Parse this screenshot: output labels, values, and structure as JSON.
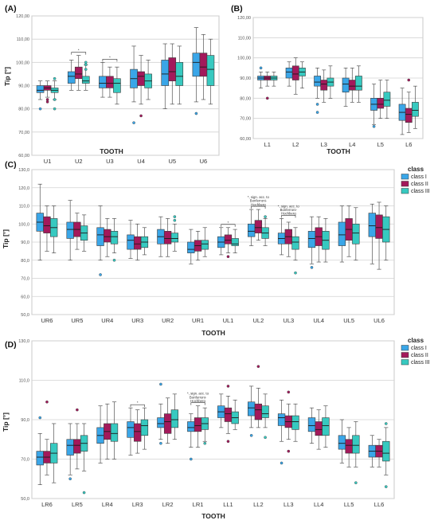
{
  "colors": {
    "class I": "#3aa6e8",
    "class II": "#a3195b",
    "class III": "#37c9c0"
  },
  "chart_data": [
    {
      "type": "box",
      "panel": "(A)",
      "title": "",
      "xlabel": "TOOTH",
      "ylabel": "Tip [°]",
      "ylim": [
        60,
        120
      ],
      "yticks": [
        60,
        70,
        80,
        90,
        100,
        110,
        120
      ],
      "ytick_labels": [
        "60,00",
        "70,00",
        "80,00",
        "90,00",
        "100,00",
        "110,00",
        "120,00"
      ],
      "grid": true,
      "categories": [
        "U1",
        "U2",
        "U3",
        "U4",
        "U5",
        "U6"
      ],
      "series_names": [
        "class I",
        "class II",
        "class III"
      ],
      "stats": [
        [
          [
            84,
            87,
            88,
            90,
            92,
            [
              80
            ]
          ],
          [
            85,
            88,
            89,
            90,
            92,
            [
              83,
              84
            ]
          ],
          [
            84,
            87,
            88,
            89,
            92,
            [
              80,
              84,
              93
            ]
          ]
        ],
        [
          [
            88,
            91,
            94,
            96,
            101,
            []
          ],
          [
            88,
            93,
            95,
            98,
            103,
            []
          ],
          [
            88,
            91,
            92,
            94,
            99,
            [
              97,
              99,
              100
            ]
          ]
        ],
        [
          [
            85,
            89,
            91,
            94,
            100,
            []
          ],
          [
            85,
            89,
            91,
            94,
            98,
            []
          ],
          [
            82,
            87,
            91,
            93,
            98,
            []
          ]
        ],
        [
          [
            83,
            89,
            93,
            97,
            107,
            [
              74
            ]
          ],
          [
            82,
            90,
            94,
            96,
            103,
            [
              77
            ]
          ],
          [
            84,
            89,
            92,
            95,
            101,
            []
          ]
        ],
        [
          [
            80,
            90,
            95,
            101,
            108,
            []
          ],
          [
            82,
            92,
            96,
            102,
            108,
            []
          ],
          [
            82,
            90,
            94,
            100,
            107,
            []
          ]
        ],
        [
          [
            83,
            94,
            100,
            104,
            115,
            [
              78
            ]
          ],
          [
            84,
            94,
            98,
            104,
            112,
            []
          ],
          [
            82,
            90,
            97,
            103,
            110,
            []
          ]
        ]
      ],
      "significance": [
        {
          "category": "U2",
          "label": "*"
        },
        {
          "category": "U3",
          "label": "*"
        }
      ]
    },
    {
      "type": "box",
      "panel": "(B)",
      "title": "",
      "xlabel": "TOOTH",
      "ylabel": "",
      "ylim": [
        60,
        120
      ],
      "yticks": [
        60,
        70,
        80,
        90,
        100,
        110,
        120
      ],
      "ytick_labels": [
        "60,00",
        "70,00",
        "80,00",
        "90,00",
        "100,00",
        "110,00",
        "120,00"
      ],
      "grid": true,
      "categories": [
        "L1",
        "L2",
        "L3",
        "L4",
        "L5",
        "L6"
      ],
      "series_names": [
        "class I",
        "class II",
        "class III"
      ],
      "stats": [
        [
          [
            85,
            89,
            90,
            91,
            93,
            [
              95
            ]
          ],
          [
            86,
            89,
            90,
            91,
            93,
            [
              80
            ]
          ],
          [
            86,
            89,
            90,
            91,
            93,
            []
          ]
        ],
        [
          [
            86,
            90,
            93,
            95,
            98,
            []
          ],
          [
            82,
            89,
            92,
            96,
            100,
            []
          ],
          [
            85,
            91,
            93,
            95,
            98,
            []
          ]
        ],
        [
          [
            80,
            86,
            88,
            91,
            95,
            [
              77,
              73
            ]
          ],
          [
            78,
            84,
            87,
            89,
            94,
            []
          ],
          [
            80,
            86,
            88,
            90,
            96,
            []
          ]
        ],
        [
          [
            76,
            83,
            87,
            90,
            95,
            []
          ],
          [
            78,
            84,
            86,
            89,
            95,
            []
          ],
          [
            78,
            84,
            86,
            91,
            96,
            []
          ]
        ],
        [
          [
            67,
            74,
            77,
            80,
            87,
            [
              66
            ]
          ],
          [
            70,
            75,
            77,
            80,
            89,
            []
          ],
          [
            70,
            76,
            79,
            83,
            89,
            []
          ]
        ],
        [
          [
            62,
            69,
            73,
            77,
            85,
            []
          ],
          [
            63,
            68,
            72,
            75,
            83,
            [
              89
            ]
          ],
          [
            65,
            71,
            74,
            78,
            86,
            []
          ]
        ]
      ],
      "significance": []
    },
    {
      "type": "box",
      "panel": "(C)",
      "title": "",
      "xlabel": "TOOTH",
      "ylabel": "Tip [°]",
      "ylim": [
        50,
        130
      ],
      "yticks": [
        50,
        60,
        70,
        80,
        90,
        100,
        110,
        120,
        130
      ],
      "ytick_labels": [
        "50,0",
        "60,0",
        "70,0",
        "80,0",
        "90,0",
        "100,0",
        "110,0",
        "120,0",
        "130,0"
      ],
      "grid": true,
      "categories": [
        "UR6",
        "UR5",
        "UR4",
        "UR3",
        "UR2",
        "UR1",
        "UL1",
        "UL2",
        "UL3",
        "UL4",
        "UL5",
        "UL6"
      ],
      "series_names": [
        "class I",
        "class II",
        "class III"
      ],
      "legend": {
        "title": "class",
        "position": "right",
        "entries": [
          "class I",
          "class II",
          "class III"
        ]
      },
      "stats": [
        [
          [
            80,
            96,
            101,
            106,
            122,
            []
          ],
          [
            85,
            95,
            99,
            104,
            110,
            []
          ],
          [
            84,
            93,
            98,
            103,
            110,
            []
          ]
        ],
        [
          [
            80,
            92,
            97,
            101,
            113,
            []
          ],
          [
            86,
            93,
            97,
            101,
            106,
            []
          ],
          [
            85,
            91,
            95,
            99,
            105,
            []
          ]
        ],
        [
          [
            80,
            88,
            94,
            98,
            110,
            [
              72
            ]
          ],
          [
            82,
            90,
            93,
            97,
            103,
            []
          ],
          [
            84,
            89,
            93,
            96,
            103,
            [
              80
            ]
          ]
        ],
        [
          [
            81,
            86,
            91,
            94,
            102,
            []
          ],
          [
            80,
            86,
            89,
            93,
            100,
            []
          ],
          [
            83,
            87,
            90,
            93,
            98,
            []
          ]
        ],
        [
          [
            82,
            89,
            93,
            97,
            104,
            []
          ],
          [
            82,
            89,
            92,
            96,
            103,
            []
          ],
          [
            85,
            90,
            92,
            95,
            100,
            [
              102,
              104
            ]
          ]
        ],
        [
          [
            78,
            84,
            86,
            90,
            97,
            []
          ],
          [
            80,
            85,
            88,
            91,
            96,
            []
          ],
          [
            82,
            86,
            89,
            91,
            98,
            []
          ]
        ],
        [
          [
            83,
            87,
            90,
            93,
            98,
            []
          ],
          [
            84,
            89,
            91,
            94,
            98,
            [
              82
            ]
          ],
          [
            84,
            88,
            89,
            92,
            97,
            []
          ]
        ],
        [
          [
            88,
            93,
            96,
            100,
            108,
            []
          ],
          [
            91,
            95,
            98,
            102,
            108,
            []
          ],
          [
            88,
            92,
            95,
            98,
            103,
            [
              104
            ]
          ]
        ],
        [
          [
            83,
            89,
            92,
            95,
            103,
            []
          ],
          [
            82,
            89,
            93,
            97,
            101,
            []
          ],
          [
            80,
            86,
            90,
            93,
            98,
            [
              73
            ]
          ]
        ],
        [
          [
            78,
            87,
            92,
            96,
            104,
            [
              76
            ]
          ],
          [
            79,
            88,
            93,
            98,
            104,
            []
          ],
          [
            79,
            86,
            91,
            96,
            103,
            []
          ]
        ],
        [
          [
            79,
            88,
            94,
            101,
            110,
            []
          ],
          [
            82,
            91,
            97,
            103,
            110,
            []
          ],
          [
            80,
            89,
            95,
            100,
            109,
            []
          ]
        ],
        [
          [
            78,
            93,
            99,
            106,
            111,
            []
          ],
          [
            75,
            92,
            98,
            105,
            112,
            []
          ],
          [
            80,
            90,
            97,
            104,
            110,
            []
          ]
        ]
      ],
      "significance": [
        {
          "category": "UL1",
          "label": "*"
        },
        {
          "category": "UL2",
          "label": "*, sign. acc. to Bonferroni-Hochberg"
        },
        {
          "category": "UL3",
          "label": "*, sign. acc. to Bonferroni-Hochberg"
        }
      ]
    },
    {
      "type": "box",
      "panel": "(D)",
      "title": "",
      "xlabel": "TOOTH",
      "ylabel": "Tip [°]",
      "ylim": [
        50,
        130
      ],
      "yticks": [
        50,
        70,
        90,
        110,
        130
      ],
      "ytick_labels": [
        "50,0",
        "70,0",
        "90,0",
        "110,0",
        "130,0"
      ],
      "grid": true,
      "categories": [
        "LR6",
        "LR5",
        "LR4",
        "LR3",
        "LR2",
        "LR1",
        "LL1",
        "LL2",
        "LL3",
        "LL4",
        "LL5",
        "LL6"
      ],
      "series_names": [
        "class I",
        "class II",
        "class III"
      ],
      "legend": {
        "title": "class",
        "position": "right",
        "entries": [
          "class I",
          "class II",
          "class III"
        ]
      },
      "stats": [
        [
          [
            57,
            67,
            71,
            74,
            83,
            [
              91
            ]
          ],
          [
            62,
            68,
            71,
            74,
            80,
            [
              99
            ]
          ],
          [
            58,
            68,
            73,
            78,
            88,
            []
          ]
        ],
        [
          [
            62,
            72,
            77,
            80,
            88,
            [
              60
            ]
          ],
          [
            65,
            73,
            77,
            80,
            88,
            [
              95
            ]
          ],
          [
            64,
            74,
            78,
            82,
            88,
            [
              53
            ]
          ]
        ],
        [
          [
            68,
            78,
            82,
            86,
            97,
            []
          ],
          [
            70,
            80,
            84,
            88,
            98,
            []
          ],
          [
            70,
            79,
            83,
            88,
            99,
            []
          ]
        ],
        [
          [
            72,
            81,
            86,
            89,
            96,
            []
          ],
          [
            73,
            79,
            84,
            88,
            95,
            []
          ],
          [
            75,
            82,
            87,
            90,
            96,
            []
          ]
        ],
        [
          [
            80,
            86,
            88,
            91,
            98,
            [
              78,
              108
            ]
          ],
          [
            78,
            83,
            89,
            93,
            101,
            []
          ],
          [
            80,
            86,
            90,
            95,
            103,
            []
          ]
        ],
        [
          [
            76,
            84,
            86,
            89,
            93,
            [
              70
            ]
          ],
          [
            76,
            84,
            87,
            91,
            97,
            []
          ],
          [
            79,
            85,
            88,
            91,
            96,
            [
              78
            ]
          ]
        ],
        [
          [
            86,
            91,
            94,
            97,
            103,
            []
          ],
          [
            83,
            89,
            93,
            96,
            102,
            [
              107,
              79
            ]
          ],
          [
            85,
            88,
            91,
            94,
            100,
            []
          ]
        ],
        [
          [
            86,
            92,
            96,
            99,
            107,
            [
              82
            ]
          ],
          [
            86,
            90,
            95,
            98,
            106,
            [
              117
            ]
          ],
          [
            86,
            91,
            93,
            97,
            103,
            [
              81
            ]
          ]
        ],
        [
          [
            79,
            87,
            91,
            93,
            100,
            [
              68
            ]
          ],
          [
            80,
            86,
            89,
            92,
            98,
            [
              104,
              74
            ]
          ],
          [
            79,
            85,
            89,
            92,
            98,
            []
          ]
        ],
        [
          [
            78,
            84,
            87,
            91,
            96,
            []
          ],
          [
            75,
            82,
            85,
            89,
            95,
            []
          ],
          [
            76,
            82,
            87,
            91,
            97,
            []
          ]
        ],
        [
          [
            68,
            75,
            78,
            82,
            90,
            []
          ],
          [
            66,
            73,
            77,
            80,
            86,
            []
          ],
          [
            66,
            73,
            77,
            82,
            89,
            [
              58
            ]
          ]
        ],
        [
          [
            66,
            71,
            74,
            77,
            82,
            []
          ],
          [
            66,
            71,
            74,
            77,
            80,
            []
          ],
          [
            62,
            69,
            73,
            79,
            86,
            [
              88,
              56
            ]
          ]
        ]
      ],
      "significance": [
        {
          "category": "LR3",
          "label": "*"
        },
        {
          "category": "LR1",
          "label": "*, sign. acc. to Bonferroni-Hochberg"
        }
      ]
    }
  ]
}
